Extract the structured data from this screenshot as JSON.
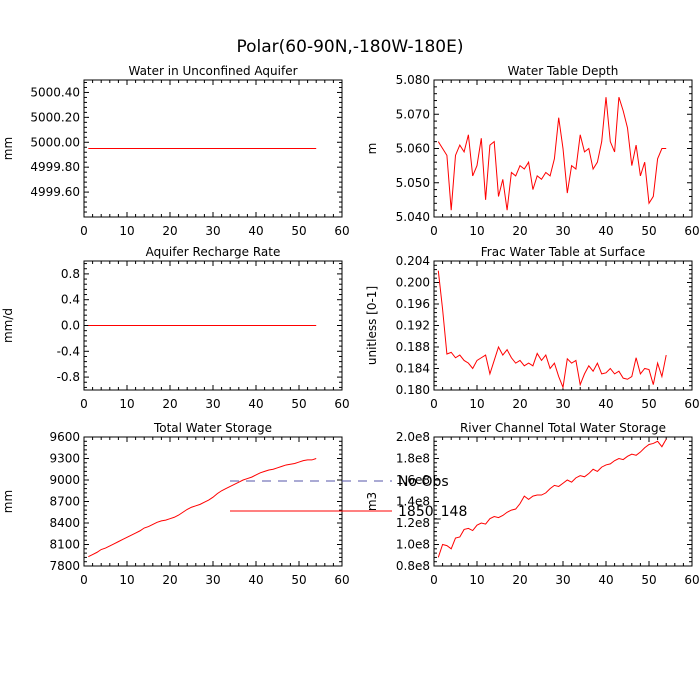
{
  "page_title": "Polar(60-90N,-180W-180E)",
  "legend": {
    "items": [
      {
        "label": "No Obs",
        "color": "#5555aa",
        "dash": true
      },
      {
        "label": "1850_148",
        "color": "#ff0000",
        "dash": false
      }
    ]
  },
  "chart_data": [
    {
      "type": "line",
      "title": "Water in Unconfined Aquifer",
      "ylabel": "mm",
      "xlim": [
        0,
        60
      ],
      "ylim": [
        4999.4,
        5000.5
      ],
      "xticks": [
        "0",
        "10",
        "20",
        "30",
        "40",
        "50",
        "60"
      ],
      "yticks": [
        {
          "v": 4999.6,
          "t": "4999.60"
        },
        {
          "v": 4999.8,
          "t": "4999.80"
        },
        {
          "v": 5000.0,
          "t": "5000.00"
        },
        {
          "v": 5000.2,
          "t": "5000.20"
        },
        {
          "v": 5000.4,
          "t": "5000.40"
        }
      ],
      "series": [
        {
          "color": "#ff0000",
          "x": [
            1,
            54
          ],
          "y": [
            4999.95,
            4999.95
          ]
        }
      ]
    },
    {
      "type": "line",
      "title": "Water Table Depth",
      "ylabel": "m",
      "xlim": [
        0,
        60
      ],
      "ylim": [
        5.04,
        5.08
      ],
      "xticks": [
        "0",
        "10",
        "20",
        "30",
        "40",
        "50",
        "60"
      ],
      "yticks": [
        {
          "v": 5.04,
          "t": "5.040"
        },
        {
          "v": 5.05,
          "t": "5.050"
        },
        {
          "v": 5.06,
          "t": "5.060"
        },
        {
          "v": 5.07,
          "t": "5.070"
        },
        {
          "v": 5.08,
          "t": "5.080"
        }
      ],
      "series": [
        {
          "color": "#ff0000",
          "x": [
            1,
            2,
            3,
            4,
            5,
            6,
            7,
            8,
            9,
            10,
            11,
            12,
            13,
            14,
            15,
            16,
            17,
            18,
            19,
            20,
            21,
            22,
            23,
            24,
            25,
            26,
            27,
            28,
            29,
            30,
            31,
            32,
            33,
            34,
            35,
            36,
            37,
            38,
            39,
            40,
            41,
            42,
            43,
            44,
            45,
            46,
            47,
            48,
            49,
            50,
            51,
            52,
            53,
            54
          ],
          "y": [
            5.062,
            5.06,
            5.058,
            5.042,
            5.058,
            5.061,
            5.059,
            5.064,
            5.052,
            5.055,
            5.063,
            5.045,
            5.061,
            5.062,
            5.046,
            5.051,
            5.042,
            5.053,
            5.052,
            5.055,
            5.054,
            5.056,
            5.048,
            5.052,
            5.051,
            5.053,
            5.052,
            5.057,
            5.069,
            5.06,
            5.047,
            5.055,
            5.054,
            5.064,
            5.059,
            5.06,
            5.054,
            5.056,
            5.062,
            5.075,
            5.062,
            5.059,
            5.075,
            5.071,
            5.066,
            5.055,
            5.061,
            5.052,
            5.056,
            5.044,
            5.046,
            5.057,
            5.06,
            5.06
          ]
        }
      ]
    },
    {
      "type": "line",
      "title": "Aquifer Recharge Rate",
      "ylabel": "mm/d",
      "xlim": [
        0,
        60
      ],
      "ylim": [
        -1.0,
        1.0
      ],
      "xticks": [
        "0",
        "10",
        "20",
        "30",
        "40",
        "50",
        "60"
      ],
      "yticks": [
        {
          "v": -0.8,
          "t": "-0.8"
        },
        {
          "v": -0.4,
          "t": "-0.4"
        },
        {
          "v": 0.0,
          "t": "0.0"
        },
        {
          "v": 0.4,
          "t": "0.4"
        },
        {
          "v": 0.8,
          "t": "0.8"
        }
      ],
      "series": [
        {
          "color": "#ff0000",
          "x": [
            1,
            54
          ],
          "y": [
            0.0,
            0.0
          ]
        }
      ]
    },
    {
      "type": "line",
      "title": "Frac Water Table at Surface",
      "ylabel": "unitless [0-1]",
      "xlim": [
        0,
        60
      ],
      "ylim": [
        0.18,
        0.204
      ],
      "xticks": [
        "0",
        "10",
        "20",
        "30",
        "40",
        "50",
        "60"
      ],
      "yticks": [
        {
          "v": 0.18,
          "t": "0.180"
        },
        {
          "v": 0.184,
          "t": "0.184"
        },
        {
          "v": 0.188,
          "t": "0.188"
        },
        {
          "v": 0.192,
          "t": "0.192"
        },
        {
          "v": 0.196,
          "t": "0.196"
        },
        {
          "v": 0.2,
          "t": "0.200"
        },
        {
          "v": 0.204,
          "t": "0.204"
        }
      ],
      "series": [
        {
          "color": "#ff0000",
          "x": [
            1,
            2,
            3,
            4,
            5,
            6,
            7,
            8,
            9,
            10,
            11,
            12,
            13,
            14,
            15,
            16,
            17,
            18,
            19,
            20,
            21,
            22,
            23,
            24,
            25,
            26,
            27,
            28,
            29,
            30,
            31,
            32,
            33,
            34,
            35,
            36,
            37,
            38,
            39,
            40,
            41,
            42,
            43,
            44,
            45,
            46,
            47,
            48,
            49,
            50,
            51,
            52,
            53,
            54
          ],
          "y": [
            0.2022,
            0.195,
            0.1867,
            0.187,
            0.186,
            0.1865,
            0.1855,
            0.185,
            0.184,
            0.1855,
            0.186,
            0.1865,
            0.183,
            0.1855,
            0.188,
            0.1865,
            0.1875,
            0.186,
            0.185,
            0.1855,
            0.1845,
            0.185,
            0.1845,
            0.1868,
            0.1855,
            0.1865,
            0.184,
            0.185,
            0.1825,
            0.1805,
            0.1858,
            0.185,
            0.1855,
            0.181,
            0.183,
            0.1845,
            0.1835,
            0.185,
            0.183,
            0.1832,
            0.184,
            0.183,
            0.1835,
            0.1822,
            0.182,
            0.1825,
            0.186,
            0.183,
            0.184,
            0.1838,
            0.181,
            0.185,
            0.1825,
            0.1865
          ]
        }
      ]
    },
    {
      "type": "line",
      "title": "Total Water Storage",
      "ylabel": "mm",
      "xlim": [
        0,
        60
      ],
      "ylim": [
        7800,
        9600
      ],
      "xticks": [
        "0",
        "10",
        "20",
        "30",
        "40",
        "50",
        "60"
      ],
      "yticks": [
        {
          "v": 7800,
          "t": "7800"
        },
        {
          "v": 8100,
          "t": "8100"
        },
        {
          "v": 8400,
          "t": "8400"
        },
        {
          "v": 8700,
          "t": "8700"
        },
        {
          "v": 9000,
          "t": "9000"
        },
        {
          "v": 9300,
          "t": "9300"
        },
        {
          "v": 9600,
          "t": "9600"
        }
      ],
      "series": [
        {
          "color": "#ff0000",
          "x": [
            1,
            2,
            3,
            4,
            5,
            6,
            7,
            8,
            9,
            10,
            11,
            12,
            13,
            14,
            15,
            16,
            17,
            18,
            19,
            20,
            21,
            22,
            23,
            24,
            25,
            26,
            27,
            28,
            29,
            30,
            31,
            32,
            33,
            34,
            35,
            36,
            37,
            38,
            39,
            40,
            41,
            42,
            43,
            44,
            45,
            46,
            47,
            48,
            49,
            50,
            51,
            52,
            53,
            54
          ],
          "y": [
            7930,
            7960,
            7990,
            8030,
            8050,
            8080,
            8110,
            8140,
            8170,
            8200,
            8230,
            8260,
            8290,
            8330,
            8350,
            8380,
            8410,
            8430,
            8440,
            8460,
            8480,
            8510,
            8550,
            8590,
            8620,
            8640,
            8660,
            8690,
            8720,
            8760,
            8810,
            8850,
            8880,
            8910,
            8940,
            8970,
            9000,
            9020,
            9040,
            9070,
            9100,
            9120,
            9140,
            9150,
            9170,
            9190,
            9210,
            9220,
            9230,
            9250,
            9270,
            9280,
            9280,
            9300
          ]
        }
      ]
    },
    {
      "type": "line",
      "title": "River Channel Total Water Storage",
      "ylabel": "m3",
      "xlim": [
        0,
        60
      ],
      "ylim": [
        80000000.0,
        200000000.0
      ],
      "xticks": [
        "0",
        "10",
        "20",
        "30",
        "40",
        "50",
        "60"
      ],
      "yticks": [
        {
          "v": 80000000.0,
          "t": "0.8e8"
        },
        {
          "v": 100000000.0,
          "t": "1.0e8"
        },
        {
          "v": 120000000.0,
          "t": "1.2e8"
        },
        {
          "v": 140000000.0,
          "t": "1.4e8"
        },
        {
          "v": 160000000.0,
          "t": "1.6e8"
        },
        {
          "v": 180000000.0,
          "t": "1.8e8"
        },
        {
          "v": 200000000.0,
          "t": "2.0e8"
        }
      ],
      "series": [
        {
          "color": "#ff0000",
          "x": [
            1,
            2,
            3,
            4,
            5,
            6,
            7,
            8,
            9,
            10,
            11,
            12,
            13,
            14,
            15,
            16,
            17,
            18,
            19,
            20,
            21,
            22,
            23,
            24,
            25,
            26,
            27,
            28,
            29,
            30,
            31,
            32,
            33,
            34,
            35,
            36,
            37,
            38,
            39,
            40,
            41,
            42,
            43,
            44,
            45,
            46,
            47,
            48,
            49,
            50,
            51,
            52,
            53,
            54
          ],
          "y": [
            88000000.0,
            100000000.0,
            99000000.0,
            96000000.0,
            106000000.0,
            107000000.0,
            114000000.0,
            115000000.0,
            113000000.0,
            118000000.0,
            120000000.0,
            119000000.0,
            124000000.0,
            126000000.0,
            125000000.0,
            127000000.0,
            130000000.0,
            132000000.0,
            133000000.0,
            138000000.0,
            145000000.0,
            142000000.0,
            145000000.0,
            146000000.0,
            146000000.0,
            148000000.0,
            152000000.0,
            155000000.0,
            154000000.0,
            157000000.0,
            160000000.0,
            158000000.0,
            162000000.0,
            164000000.0,
            163000000.0,
            166000000.0,
            170000000.0,
            168000000.0,
            172000000.0,
            174000000.0,
            175000000.0,
            178000000.0,
            180000000.0,
            179000000.0,
            182000000.0,
            184000000.0,
            183000000.0,
            186000000.0,
            190000000.0,
            193000000.0,
            194000000.0,
            196000000.0,
            191000000.0,
            198000000.0
          ]
        }
      ]
    }
  ]
}
